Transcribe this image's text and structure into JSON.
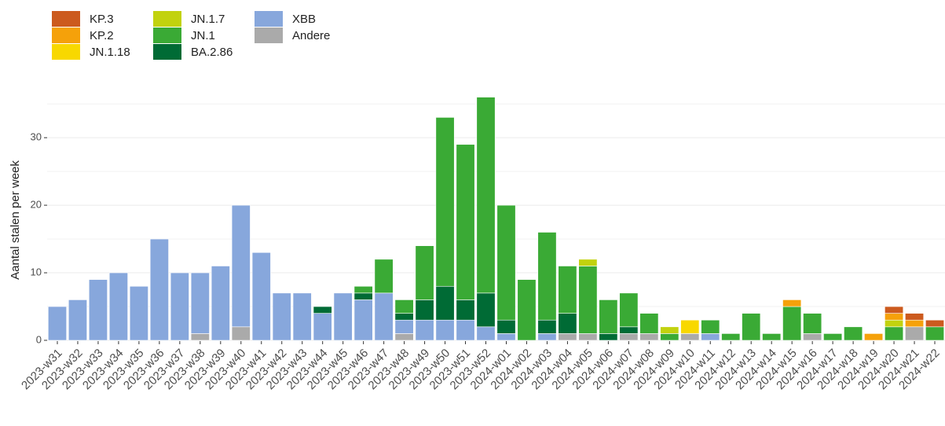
{
  "chart_data": {
    "type": "stacked_bar",
    "y_label": "Aantal stalen per week",
    "categories": [
      "2023-w31",
      "2023-w32",
      "2023-w33",
      "2023-w34",
      "2023-w35",
      "2023-w36",
      "2023-w37",
      "2023-w38",
      "2023-w39",
      "2023-w40",
      "2023-w41",
      "2023-w42",
      "2023-w43",
      "2023-w44",
      "2023-w45",
      "2023-w46",
      "2023-w47",
      "2023-w48",
      "2023-w49",
      "2023-w50",
      "2023-w51",
      "2023-w52",
      "2024-w01",
      "2024-w02",
      "2024-w03",
      "2024-w04",
      "2024-w05",
      "2024-w06",
      "2024-w07",
      "2024-w08",
      "2024-w09",
      "2024-w10",
      "2024-w11",
      "2024-w12",
      "2024-w13",
      "2024-w14",
      "2024-w15",
      "2024-w16",
      "2024-w17",
      "2024-w18",
      "2024-w19",
      "2024-w20",
      "2024-w21",
      "2024-w22"
    ],
    "series": [
      {
        "name": "KP.3",
        "color": "#cc5a1e",
        "values": [
          0,
          0,
          0,
          0,
          0,
          0,
          0,
          0,
          0,
          0,
          0,
          0,
          0,
          0,
          0,
          0,
          0,
          0,
          0,
          0,
          0,
          0,
          0,
          0,
          0,
          0,
          0,
          0,
          0,
          0,
          0,
          0,
          0,
          0,
          0,
          0,
          0,
          0,
          0,
          0,
          0,
          1,
          1,
          1
        ]
      },
      {
        "name": "KP.2",
        "color": "#f5a10a",
        "values": [
          0,
          0,
          0,
          0,
          0,
          0,
          0,
          0,
          0,
          0,
          0,
          0,
          0,
          0,
          0,
          0,
          0,
          0,
          0,
          0,
          0,
          0,
          0,
          0,
          0,
          0,
          0,
          0,
          0,
          0,
          0,
          0,
          0,
          0,
          0,
          0,
          1,
          0,
          0,
          0,
          1,
          1,
          1,
          0
        ]
      },
      {
        "name": "JN.1.18",
        "color": "#f8d800",
        "values": [
          0,
          0,
          0,
          0,
          0,
          0,
          0,
          0,
          0,
          0,
          0,
          0,
          0,
          0,
          0,
          0,
          0,
          0,
          0,
          0,
          0,
          0,
          0,
          0,
          0,
          0,
          0,
          0,
          0,
          0,
          0,
          2,
          0,
          0,
          0,
          0,
          0,
          0,
          0,
          0,
          0,
          0,
          0,
          0
        ]
      },
      {
        "name": "JN.1.7",
        "color": "#c2d20e",
        "values": [
          0,
          0,
          0,
          0,
          0,
          0,
          0,
          0,
          0,
          0,
          0,
          0,
          0,
          0,
          0,
          0,
          0,
          0,
          0,
          0,
          0,
          0,
          0,
          0,
          0,
          0,
          1,
          0,
          0,
          0,
          1,
          0,
          0,
          0,
          0,
          0,
          0,
          0,
          0,
          0,
          0,
          1,
          0,
          0
        ]
      },
      {
        "name": "JN.1",
        "color": "#3aaa35",
        "values": [
          0,
          0,
          0,
          0,
          0,
          0,
          0,
          0,
          0,
          0,
          0,
          0,
          0,
          0,
          0,
          1,
          5,
          2,
          8,
          25,
          23,
          29,
          17,
          9,
          13,
          7,
          10,
          5,
          5,
          3,
          1,
          0,
          2,
          1,
          4,
          1,
          5,
          3,
          1,
          2,
          0,
          2,
          0,
          2
        ]
      },
      {
        "name": "BA.2.86",
        "color": "#006b35",
        "values": [
          0,
          0,
          0,
          0,
          0,
          0,
          0,
          0,
          0,
          0,
          0,
          0,
          0,
          1,
          0,
          1,
          0,
          1,
          3,
          5,
          3,
          5,
          2,
          0,
          2,
          3,
          0,
          1,
          1,
          0,
          0,
          0,
          0,
          0,
          0,
          0,
          0,
          0,
          0,
          0,
          0,
          0,
          0,
          0
        ]
      },
      {
        "name": "XBB",
        "color": "#87a7dc",
        "values": [
          5,
          6,
          9,
          10,
          8,
          15,
          10,
          9,
          11,
          18,
          13,
          7,
          7,
          4,
          7,
          6,
          7,
          2,
          3,
          3,
          3,
          2,
          1,
          0,
          1,
          0,
          0,
          0,
          0,
          0,
          0,
          0,
          1,
          0,
          0,
          0,
          0,
          0,
          0,
          0,
          0,
          0,
          0,
          0
        ]
      },
      {
        "name": "Andere",
        "color": "#aaaaaa",
        "values": [
          0,
          0,
          0,
          0,
          0,
          0,
          0,
          1,
          0,
          2,
          0,
          0,
          0,
          0,
          0,
          0,
          0,
          1,
          0,
          0,
          0,
          0,
          0,
          0,
          0,
          1,
          1,
          0,
          1,
          1,
          0,
          1,
          0,
          0,
          0,
          0,
          0,
          1,
          0,
          0,
          0,
          0,
          2,
          0
        ]
      }
    ],
    "ylim": [
      0,
      37
    ],
    "yticks": [
      0,
      10,
      20,
      30
    ],
    "grid": true
  }
}
